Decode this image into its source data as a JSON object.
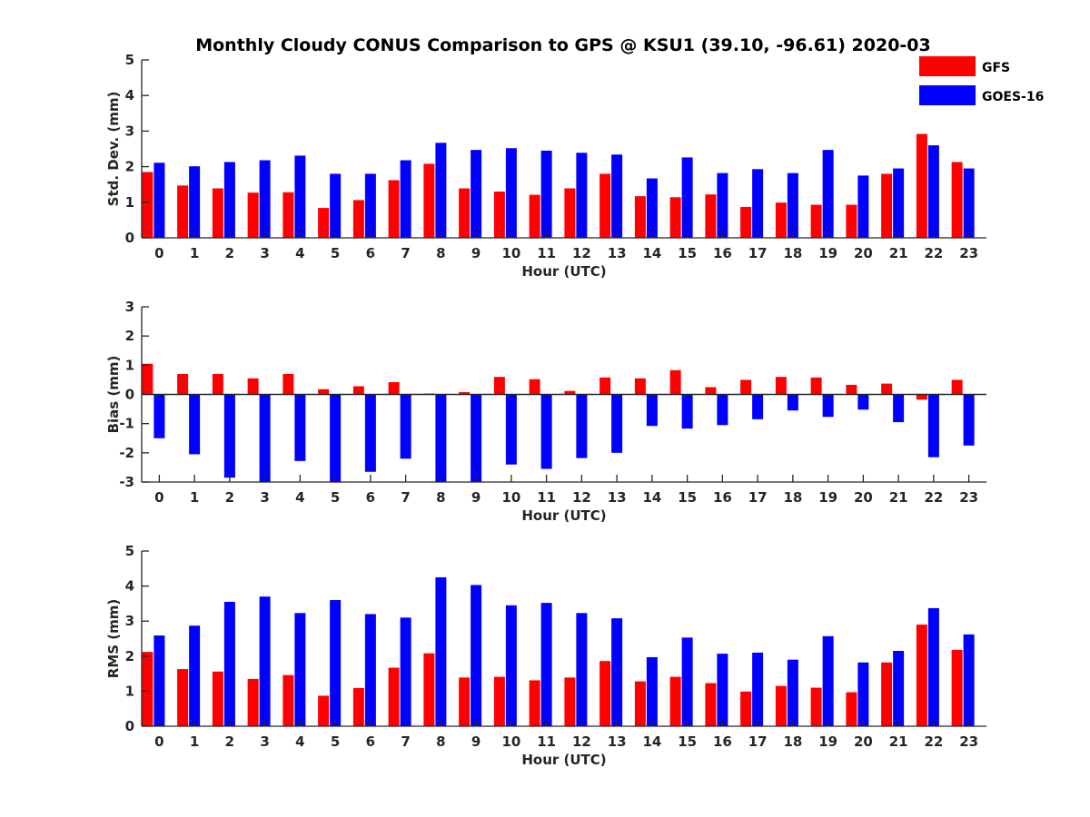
{
  "chart_data": {
    "title": "Monthly Cloudy CONUS Comparison to GPS @ KSU1 (39.10, -96.61) 2020-03",
    "type": "bar",
    "categories": [
      "0",
      "1",
      "2",
      "3",
      "4",
      "5",
      "6",
      "7",
      "8",
      "9",
      "10",
      "11",
      "12",
      "13",
      "14",
      "15",
      "16",
      "17",
      "18",
      "19",
      "20",
      "21",
      "22",
      "23"
    ],
    "legend": {
      "position": "top-right",
      "entries": [
        {
          "name": "GFS",
          "color": "#ff0000"
        },
        {
          "name": "GOES-16",
          "color": "#0000ff"
        }
      ]
    },
    "panels": [
      {
        "id": "std",
        "ylabel": "Std. Dev. (mm)",
        "xlabel": "Hour (UTC)",
        "ylim": [
          0,
          5
        ],
        "yticks": [
          "0",
          "1",
          "2",
          "3",
          "4",
          "5"
        ],
        "series": [
          {
            "name": "GFS",
            "color": "#ff0000",
            "values": [
              1.85,
              1.47,
              1.39,
              1.27,
              1.28,
              0.84,
              1.06,
              1.62,
              2.08,
              1.39,
              1.3,
              1.21,
              1.39,
              1.8,
              1.17,
              1.14,
              1.22,
              0.87,
              0.99,
              0.93,
              0.93,
              1.8,
              2.92,
              2.13
            ]
          },
          {
            "name": "GOES-16",
            "color": "#0000ff",
            "values": [
              2.11,
              2.01,
              2.13,
              2.18,
              2.31,
              1.8,
              1.8,
              2.18,
              2.67,
              2.47,
              2.52,
              2.45,
              2.39,
              2.34,
              1.67,
              2.26,
              1.82,
              1.93,
              1.82,
              2.47,
              1.75,
              1.95,
              2.6,
              1.95
            ]
          }
        ]
      },
      {
        "id": "bias",
        "ylabel": "Bias (mm)",
        "xlabel": "Hour (UTC)",
        "ylim": [
          -3,
          3
        ],
        "yticks": [
          "-3",
          "-2",
          "-1",
          "0",
          "1",
          "2",
          "3"
        ],
        "series": [
          {
            "name": "GFS",
            "color": "#ff0000",
            "values": [
              1.05,
              0.7,
              0.7,
              0.55,
              0.7,
              0.18,
              0.28,
              0.42,
              0.03,
              0.08,
              0.6,
              0.52,
              0.12,
              0.58,
              0.55,
              0.83,
              0.25,
              0.5,
              0.6,
              0.58,
              0.33,
              0.37,
              -0.18,
              0.5
            ]
          },
          {
            "name": "GOES-16",
            "color": "#0000ff",
            "values": [
              -1.5,
              -2.05,
              -2.85,
              -3.0,
              -2.28,
              -3.0,
              -2.65,
              -2.2,
              -3.0,
              -3.0,
              -2.4,
              -2.55,
              -2.18,
              -2.0,
              -1.08,
              -1.17,
              -1.05,
              -0.85,
              -0.55,
              -0.77,
              -0.52,
              -0.95,
              -2.15,
              -1.75
            ]
          }
        ]
      },
      {
        "id": "rms",
        "ylabel": "RMS (mm)",
        "xlabel": "Hour (UTC)",
        "ylim": [
          0,
          5
        ],
        "yticks": [
          "0",
          "1",
          "2",
          "3",
          "4",
          "5"
        ],
        "series": [
          {
            "name": "GFS",
            "color": "#ff0000",
            "values": [
              2.12,
              1.63,
              1.56,
              1.35,
              1.46,
              0.87,
              1.09,
              1.67,
              2.08,
              1.39,
              1.41,
              1.31,
              1.39,
              1.86,
              1.28,
              1.41,
              1.23,
              0.99,
              1.15,
              1.1,
              0.97,
              1.82,
              2.9,
              2.18
            ]
          },
          {
            "name": "GOES-16",
            "color": "#0000ff",
            "values": [
              2.59,
              2.87,
              3.55,
              3.7,
              3.23,
              3.6,
              3.2,
              3.1,
              4.25,
              4.03,
              3.45,
              3.52,
              3.23,
              3.08,
              1.97,
              2.53,
              2.07,
              2.1,
              1.9,
              2.57,
              1.82,
              2.15,
              3.37,
              2.62
            ]
          }
        ]
      }
    ]
  }
}
